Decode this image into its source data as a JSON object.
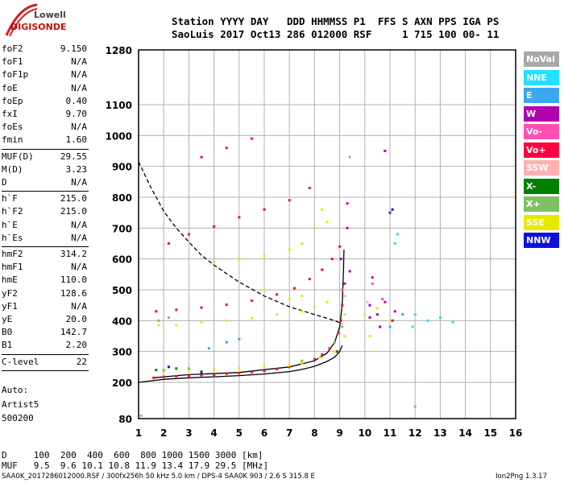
{
  "logo": {
    "line1": "Lowell",
    "line2": "DIGISONDE"
  },
  "header": {
    "line1": "Station YYYY DAY   DDD HHMMSS P1  FFS S AXN PPS IGA PS",
    "line2": "SaoLuis 2017 Oct13 286 012000 RSF     1 715 100 00- 11"
  },
  "params": [
    {
      "k": "foF2",
      "v": "9.150"
    },
    {
      "k": "foF1",
      "v": "N/A"
    },
    {
      "k": "foF1p",
      "v": "N/A"
    },
    {
      "k": "foE",
      "v": "N/A"
    },
    {
      "k": "foEp",
      "v": "0.40"
    },
    {
      "k": "fxI",
      "v": "9.70"
    },
    {
      "k": "foEs",
      "v": "N/A"
    },
    {
      "k": "fmin",
      "v": "1.60"
    },
    {
      "k": "MUF(D)",
      "v": "29.55"
    },
    {
      "k": "M(D)",
      "v": "3.23"
    },
    {
      "k": "D",
      "v": "N/A"
    },
    {
      "k": "h`F",
      "v": "215.0"
    },
    {
      "k": "h`F2",
      "v": "215.0"
    },
    {
      "k": "h`E",
      "v": "N/A"
    },
    {
      "k": "h`Es",
      "v": "N/A"
    },
    {
      "k": "hmF2",
      "v": "314.2"
    },
    {
      "k": "hmF1",
      "v": "N/A"
    },
    {
      "k": "hmE",
      "v": "110.0"
    },
    {
      "k": "yF2",
      "v": "128.6"
    },
    {
      "k": "yF1",
      "v": "N/A"
    },
    {
      "k": "yE",
      "v": "20.0"
    },
    {
      "k": "B0",
      "v": "142.7"
    },
    {
      "k": "B1",
      "v": "2.20"
    },
    {
      "k": "C-level",
      "v": "22"
    }
  ],
  "auto": {
    "line1": "Auto:",
    "line2": "Artist5",
    "line3": "500200"
  },
  "legend": [
    {
      "label": "NoVal",
      "color": "#a8a8a8"
    },
    {
      "label": "NNE",
      "color": "#22e0ff"
    },
    {
      "label": "E",
      "color": "#3aa8f0"
    },
    {
      "label": "W",
      "color": "#b000b0"
    },
    {
      "label": "Vo-",
      "color": "#ff50b0"
    },
    {
      "label": "Vo+",
      "color": "#ff0040"
    },
    {
      "label": "SSW",
      "color": "#ffb0b0"
    },
    {
      "label": "X-",
      "color": "#008000"
    },
    {
      "label": "X+",
      "color": "#80c060"
    },
    {
      "label": "SSE",
      "color": "#e8e800"
    },
    {
      "label": "NNW",
      "color": "#1010e0"
    }
  ],
  "bottom": {
    "d_line": "D     100  200  400  600  800 1000 1500 3000 [km]",
    "muf_line": "MUF   9.5  9.6 10.1 10.8 11.9 13.4 17.9 29.5 [MHz]"
  },
  "footer": {
    "left": "SAA0K_2017286012000.RSF / 300fx256h 50 kHz 5.0 km / DPS-4 SAA0K 903 / 2.6 S 315.8 E",
    "right": "Ion2Png 1.3.17"
  },
  "chart_data": {
    "type": "scatter",
    "xlim": [
      1,
      16
    ],
    "ylim": [
      80,
      1280
    ],
    "x_ticks": [
      1,
      2,
      3,
      4,
      5,
      6,
      7,
      8,
      9,
      10,
      11,
      12,
      13,
      14,
      15,
      16
    ],
    "y_ticks": [
      80,
      200,
      300,
      400,
      500,
      600,
      700,
      800,
      900,
      1000,
      1100,
      1280
    ],
    "grid": true,
    "legend_position": "right",
    "series": [
      {
        "name": "Vo+",
        "color": "#ff0040",
        "points": [
          [
            1.6,
            215
          ],
          [
            2,
            218
          ],
          [
            2.5,
            220
          ],
          [
            3,
            222
          ],
          [
            3.5,
            223
          ],
          [
            4,
            225
          ],
          [
            4.5,
            228
          ],
          [
            5,
            230
          ],
          [
            5.5,
            233
          ],
          [
            6,
            237
          ],
          [
            6.5,
            243
          ],
          [
            7,
            250
          ],
          [
            7.5,
            262
          ],
          [
            8,
            275
          ],
          [
            8.3,
            290
          ],
          [
            8.6,
            310
          ],
          [
            8.8,
            330
          ],
          [
            8.95,
            360
          ],
          [
            9.05,
            400
          ],
          [
            9.1,
            450
          ],
          [
            1.7,
            430
          ],
          [
            2.5,
            435
          ],
          [
            3.5,
            442
          ],
          [
            4.5,
            452
          ],
          [
            5.5,
            465
          ],
          [
            6.5,
            485
          ],
          [
            7.2,
            505
          ],
          [
            7.8,
            535
          ],
          [
            8.3,
            565
          ],
          [
            8.7,
            600
          ],
          [
            9,
            640
          ],
          [
            2.2,
            650
          ],
          [
            3,
            680
          ],
          [
            4,
            705
          ],
          [
            5,
            735
          ],
          [
            6,
            760
          ],
          [
            7,
            790
          ],
          [
            7.8,
            830
          ],
          [
            3.5,
            930
          ],
          [
            4.5,
            960
          ],
          [
            5.5,
            990
          ]
        ]
      },
      {
        "name": "W",
        "color": "#b000b0",
        "points": [
          [
            9.2,
            520
          ],
          [
            9.4,
            560
          ],
          [
            10.2,
            450
          ],
          [
            10.5,
            420
          ],
          [
            10.8,
            460
          ],
          [
            11.1,
            400
          ],
          [
            10.3,
            540
          ],
          [
            9.3,
            780
          ],
          [
            9.3,
            700
          ],
          [
            11,
            750
          ],
          [
            10.2,
            410
          ],
          [
            10.6,
            380
          ],
          [
            11.2,
            430
          ],
          [
            9.05,
            600
          ],
          [
            10.8,
            950
          ]
        ]
      },
      {
        "name": "SSE",
        "color": "#e8e800",
        "points": [
          [
            1.8,
            385
          ],
          [
            2.5,
            385
          ],
          [
            3.5,
            395
          ],
          [
            4.5,
            400
          ],
          [
            5.5,
            408
          ],
          [
            6.5,
            420
          ],
          [
            7.5,
            430
          ],
          [
            8,
            445
          ],
          [
            8.5,
            460
          ],
          [
            2,
            235
          ],
          [
            3,
            240
          ],
          [
            4,
            243
          ],
          [
            5,
            246
          ],
          [
            6,
            250
          ],
          [
            7,
            255
          ],
          [
            7.5,
            262
          ],
          [
            8.2,
            280
          ],
          [
            8.8,
            300
          ],
          [
            9.2,
            350
          ],
          [
            9.2,
            420
          ],
          [
            10,
            420
          ],
          [
            10.5,
            440
          ],
          [
            10.2,
            350
          ],
          [
            11,
            400
          ],
          [
            4,
            590
          ],
          [
            5,
            600
          ],
          [
            6,
            610
          ],
          [
            7,
            630
          ],
          [
            7.5,
            650
          ],
          [
            8,
            700
          ],
          [
            8.5,
            720
          ],
          [
            8.3,
            760
          ],
          [
            6,
            500
          ],
          [
            7,
            470
          ],
          [
            7.5,
            480
          ]
        ]
      },
      {
        "name": "X+",
        "color": "#80c060",
        "points": [
          [
            1.8,
            400
          ],
          [
            2.2,
            410
          ],
          [
            2,
            240
          ],
          [
            3,
            245
          ],
          [
            8.8,
            330
          ],
          [
            9.1,
            380
          ],
          [
            7.5,
            270
          ]
        ]
      },
      {
        "name": "X-",
        "color": "#008000",
        "points": [
          [
            1.7,
            240
          ],
          [
            2.5,
            245
          ],
          [
            3.5,
            235
          ],
          [
            8.9,
            300
          ]
        ]
      },
      {
        "name": "NNE",
        "color": "#22e0ff",
        "points": [
          [
            11.2,
            650
          ],
          [
            11.3,
            680
          ],
          [
            12,
            420
          ],
          [
            12.5,
            400
          ],
          [
            13,
            410
          ],
          [
            13.5,
            395
          ],
          [
            11.9,
            380
          ]
        ]
      },
      {
        "name": "E",
        "color": "#3aa8f0",
        "points": [
          [
            4.5,
            330
          ],
          [
            5,
            340
          ],
          [
            3.8,
            310
          ],
          [
            11,
            380
          ],
          [
            11.5,
            420
          ]
        ]
      },
      {
        "name": "NNW",
        "color": "#1010e0",
        "points": [
          [
            2.2,
            250
          ],
          [
            3.5,
            230
          ],
          [
            11.1,
            760
          ]
        ]
      },
      {
        "name": "Vo-",
        "color": "#ff50b0",
        "points": [
          [
            9.1,
            500
          ],
          [
            10.3,
            520
          ],
          [
            10.7,
            470
          ]
        ]
      },
      {
        "name": "NoVal",
        "color": "#a8a8a8",
        "points": [
          [
            9.4,
            930
          ],
          [
            12,
            120
          ],
          [
            1.1,
            90
          ]
        ]
      },
      {
        "name": "SSW",
        "color": "#ffb0b0",
        "points": [
          [
            9.2,
            480
          ],
          [
            10.1,
            460
          ]
        ]
      }
    ],
    "curves": [
      {
        "name": "virtual-height-model",
        "style": "solid",
        "color": "#000000",
        "points": [
          [
            1,
            200
          ],
          [
            2,
            210
          ],
          [
            3,
            215
          ],
          [
            4,
            218
          ],
          [
            5,
            222
          ],
          [
            6,
            227
          ],
          [
            7,
            235
          ],
          [
            7.5,
            242
          ],
          [
            8,
            252
          ],
          [
            8.5,
            268
          ],
          [
            8.8,
            282
          ],
          [
            9,
            300
          ],
          [
            9.1,
            320
          ]
        ]
      },
      {
        "name": "true-height-profile",
        "style": "solid",
        "color": "#000000",
        "points": [
          [
            1.6,
            215
          ],
          [
            3,
            225
          ],
          [
            5,
            232
          ],
          [
            7,
            250
          ],
          [
            8,
            270
          ],
          [
            8.5,
            295
          ],
          [
            8.8,
            330
          ],
          [
            9,
            380
          ],
          [
            9.1,
            450
          ],
          [
            9.15,
            560
          ],
          [
            9.17,
            630
          ]
        ]
      },
      {
        "name": "muf-curve",
        "style": "dashed",
        "color": "#000000",
        "points": [
          [
            1,
            915
          ],
          [
            1.5,
            830
          ],
          [
            2,
            755
          ],
          [
            2.5,
            700
          ],
          [
            3,
            655
          ],
          [
            3.5,
            612
          ],
          [
            4,
            580
          ],
          [
            5,
            525
          ],
          [
            6,
            480
          ],
          [
            7,
            445
          ],
          [
            8,
            420
          ],
          [
            8.8,
            400
          ],
          [
            9.1,
            390
          ]
        ]
      }
    ]
  }
}
